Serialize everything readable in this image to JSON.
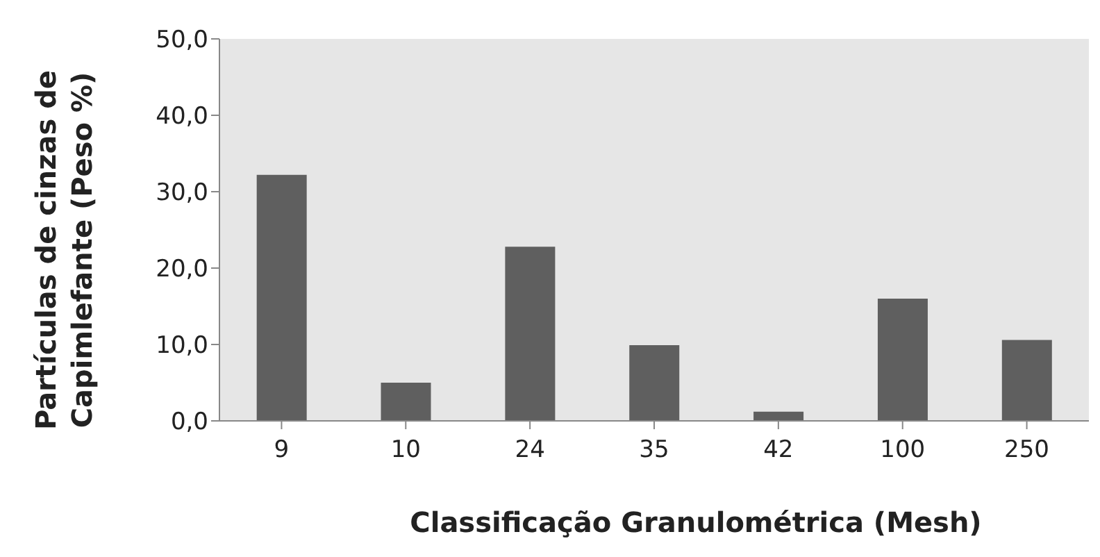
{
  "chart_data": {
    "type": "bar",
    "xlabel": "Classificação Granulométrica (Mesh)",
    "ylabel": "Partículas de cinzas de Capimlefante  (Peso %)",
    "categories": [
      "9",
      "10",
      "24",
      "35",
      "42",
      "100",
      "250"
    ],
    "values": [
      32.2,
      5.0,
      22.8,
      9.9,
      1.2,
      16.0,
      10.6
    ],
    "color": "#5f5f5f",
    "ylim": [
      0,
      50
    ],
    "yticks": [
      {
        "value": 0,
        "label": "0,0"
      },
      {
        "value": 10,
        "label": "10,0"
      },
      {
        "value": 20,
        "label": "20,0"
      },
      {
        "value": 30,
        "label": "30,0"
      },
      {
        "value": 40,
        "label": "40,0"
      },
      {
        "value": 50,
        "label": "50,0"
      }
    ],
    "grid": false,
    "legend": false
  }
}
